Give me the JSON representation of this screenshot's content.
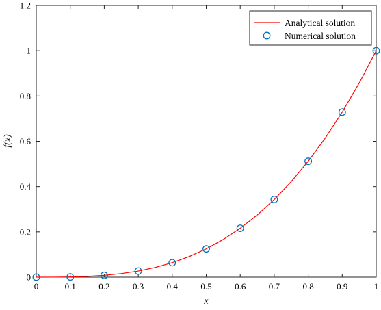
{
  "chart_data": {
    "type": "line",
    "xlabel": "x",
    "ylabel": "f(x)",
    "xlim": [
      0,
      1
    ],
    "ylim": [
      0,
      1.2
    ],
    "xticks": [
      "0",
      "0.1",
      "0.2",
      "0.3",
      "0.4",
      "0.5",
      "0.6",
      "0.7",
      "0.8",
      "0.9",
      "1"
    ],
    "yticks": [
      "0",
      "0.2",
      "0.4",
      "0.6",
      "0.8",
      "1",
      "1.2"
    ],
    "grid": false,
    "legend_position": "top-right",
    "series": [
      {
        "name": "Analytical solution",
        "style": "line",
        "color": "#ff0000",
        "x": [
          0,
          0.05,
          0.1,
          0.15,
          0.2,
          0.25,
          0.3,
          0.35,
          0.4,
          0.45,
          0.5,
          0.55,
          0.6,
          0.65,
          0.7,
          0.75,
          0.8,
          0.85,
          0.9,
          0.95,
          1
        ],
        "y": [
          0,
          0.000125,
          0.001,
          0.003375,
          0.008,
          0.015625,
          0.027,
          0.042875,
          0.064,
          0.091125,
          0.125,
          0.166375,
          0.216,
          0.274625,
          0.343,
          0.421875,
          0.512,
          0.614125,
          0.729,
          0.857375,
          1
        ]
      },
      {
        "name": "Numerical solution",
        "style": "marker",
        "color": "#0072bd",
        "x": [
          0,
          0.1,
          0.2,
          0.3,
          0.4,
          0.5,
          0.6,
          0.7,
          0.8,
          0.9,
          1
        ],
        "y": [
          0,
          0.001,
          0.008,
          0.027,
          0.064,
          0.125,
          0.216,
          0.343,
          0.512,
          0.729,
          1
        ]
      }
    ]
  }
}
